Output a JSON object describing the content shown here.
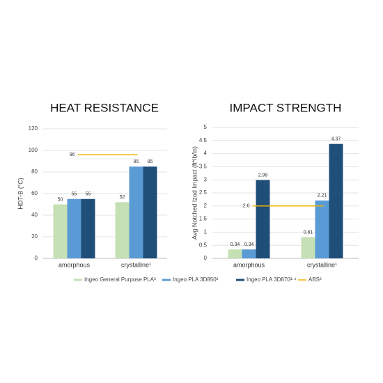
{
  "chart_data": [
    {
      "type": "bar",
      "title": "HEAT RESISTANCE",
      "y_label": "HDT-B (°C)",
      "categories": [
        "amorphous",
        "crystalline¹"
      ],
      "series": [
        {
          "name": "Ingeo General Purpose PLA³",
          "color": "#c5e0b4",
          "values": [
            50,
            52
          ]
        },
        {
          "name": "Ingeo PLA 3D850³",
          "color": "#5b9bd5",
          "values": [
            55,
            85
          ]
        },
        {
          "name": "Ingeo PLA 3D870³·⁴",
          "color": "#1f4e79",
          "values": [
            55,
            85
          ]
        }
      ],
      "reference": {
        "name": "ABS²",
        "color": "#f0b400",
        "value": 96
      },
      "ylim": [
        0,
        120
      ],
      "yticks": [
        0,
        20,
        40,
        60,
        80,
        100,
        120
      ],
      "grid": true
    },
    {
      "type": "bar",
      "title": "IMPACT STRENGTH",
      "y_label": "Avg Notched Izod Impact (ft*lb/in)",
      "categories": [
        "amorphous",
        "crystalline¹"
      ],
      "series": [
        {
          "color": "#c5e0b4",
          "values": [
            0.34,
            0.81
          ]
        },
        {
          "color": "#5b9bd5",
          "values": [
            0.34,
            2.21
          ]
        },
        {
          "color": "#1f4e79",
          "values": [
            2.99,
            4.37
          ]
        }
      ],
      "reference": {
        "color": "#f0b400",
        "value": 2,
        "value_label": "2.0"
      },
      "ylim": [
        0,
        5
      ],
      "yticks": [
        0,
        0.5,
        1,
        1.5,
        2,
        2.5,
        3,
        3.5,
        4,
        4.5,
        5
      ],
      "grid": true
    }
  ]
}
